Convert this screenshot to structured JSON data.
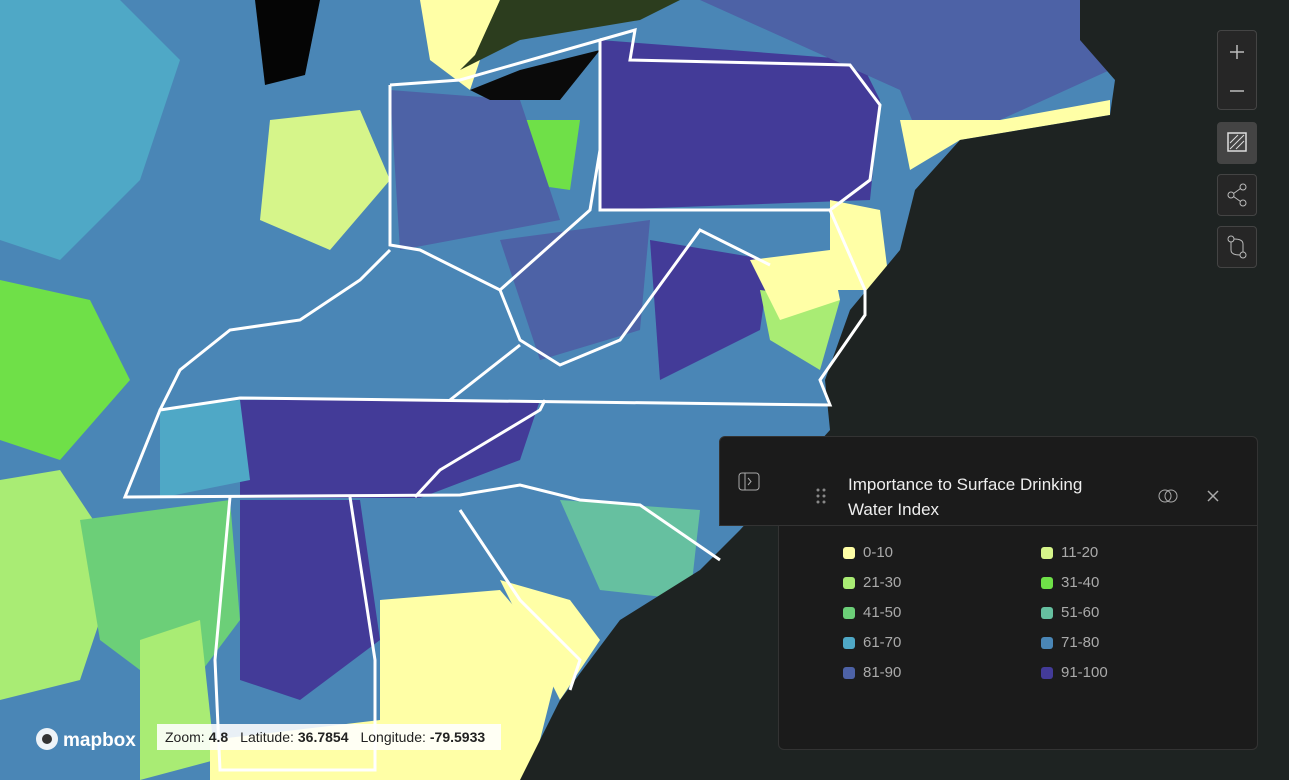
{
  "legend": {
    "title": "Importance to Surface Drinking Water Index",
    "items": [
      {
        "label": "0-10",
        "color": "#ffffa6"
      },
      {
        "label": "11-20",
        "color": "#d6f58a"
      },
      {
        "label": "21-30",
        "color": "#a9ec74"
      },
      {
        "label": "31-40",
        "color": "#6fe048"
      },
      {
        "label": "41-50",
        "color": "#6ccf78"
      },
      {
        "label": "51-60",
        "color": "#66c0a0"
      },
      {
        "label": "61-70",
        "color": "#4fa8c6"
      },
      {
        "label": "71-80",
        "color": "#4a86b6"
      },
      {
        "label": "81-90",
        "color": "#4d62a6"
      },
      {
        "label": "91-100",
        "color": "#433b98"
      }
    ]
  },
  "status": {
    "zoom_label": "Zoom:",
    "zoom": 4.8,
    "latitude_label": "Latitude:",
    "latitude": 36.7854,
    "longitude_label": "Longitude:",
    "longitude": -79.5933
  },
  "attribution": "mapbox"
}
